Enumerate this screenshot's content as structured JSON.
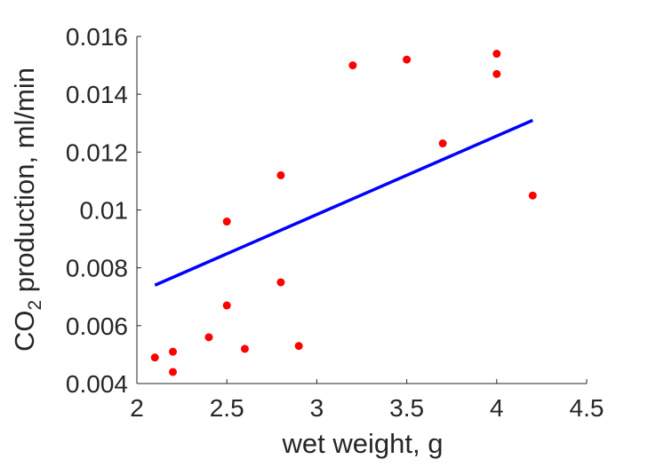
{
  "chart_data": {
    "type": "scatter",
    "xlabel": "wet weight, g",
    "ylabel_main": "CO",
    "ylabel_sub": "2",
    "ylabel_rest": " production, ml/min",
    "xlim": [
      2,
      4.5
    ],
    "ylim": [
      0.004,
      0.016
    ],
    "x_ticks": [
      2,
      2.5,
      3,
      3.5,
      4,
      4.5
    ],
    "x_tick_labels": [
      "2",
      "2.5",
      "3",
      "3.5",
      "4",
      "4.5"
    ],
    "y_ticks": [
      0.004,
      0.006,
      0.008,
      0.01,
      0.012,
      0.014,
      0.016
    ],
    "y_tick_labels": [
      "0.004",
      "0.006",
      "0.008",
      "0.01",
      "0.012",
      "0.014",
      "0.016"
    ],
    "grid": false,
    "legend": "none",
    "series": [
      {
        "type": "scatter",
        "color": "#ff0000",
        "points": [
          [
            2.1,
            0.0049
          ],
          [
            2.2,
            0.0051
          ],
          [
            2.2,
            0.0044
          ],
          [
            2.4,
            0.0056
          ],
          [
            2.5,
            0.0096
          ],
          [
            2.5,
            0.0067
          ],
          [
            2.6,
            0.0052
          ],
          [
            2.8,
            0.0112
          ],
          [
            2.8,
            0.0075
          ],
          [
            2.9,
            0.0053
          ],
          [
            3.2,
            0.015
          ],
          [
            3.5,
            0.0152
          ],
          [
            3.7,
            0.0123
          ],
          [
            4.0,
            0.0154
          ],
          [
            4.0,
            0.0147
          ],
          [
            4.2,
            0.0105
          ]
        ]
      },
      {
        "type": "line",
        "color": "#0000ff",
        "points": [
          [
            2.1,
            0.0074
          ],
          [
            4.2,
            0.0131
          ]
        ]
      }
    ]
  }
}
